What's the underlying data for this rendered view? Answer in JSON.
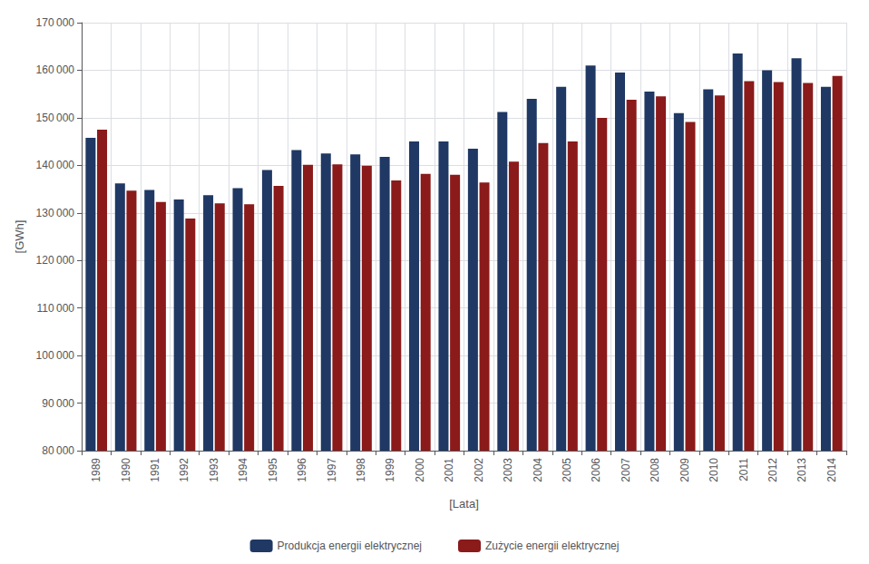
{
  "chart_data": {
    "type": "bar",
    "xlabel": "[Lata]",
    "ylabel": "[GWh]",
    "categories": [
      "1989",
      "1990",
      "1991",
      "1992",
      "1993",
      "1994",
      "1995",
      "1996",
      "1997",
      "1998",
      "1999",
      "2000",
      "2001",
      "2002",
      "2003",
      "2004",
      "2005",
      "2006",
      "2007",
      "2008",
      "2009",
      "2010",
      "2011",
      "2012",
      "2013",
      "2014"
    ],
    "series": [
      {
        "name": "Produkcja energii elektrycznej",
        "color": "#1F3864",
        "values": [
          145800,
          136200,
          134800,
          132800,
          133700,
          135200,
          139000,
          143200,
          142500,
          142300,
          141800,
          145000,
          145000,
          143500,
          151200,
          154000,
          156500,
          161000,
          159500,
          155500,
          151000,
          156000,
          163500,
          160000,
          162500,
          156500
        ]
      },
      {
        "name": "Zużycie energii elektrycznej",
        "color": "#8B1A1A",
        "values": [
          147500,
          134700,
          132300,
          128800,
          132000,
          131800,
          135700,
          140100,
          140200,
          139900,
          136800,
          138200,
          138000,
          136400,
          140800,
          144700,
          145000,
          150000,
          153800,
          154500,
          149100,
          154700,
          157700,
          157500,
          157300,
          158800
        ]
      }
    ],
    "ylim": [
      80000,
      170000
    ],
    "yticks": [
      {
        "value": 80000,
        "label": "80 000"
      },
      {
        "value": 90000,
        "label": "90 000"
      },
      {
        "value": 100000,
        "label": "100 000"
      },
      {
        "value": 110000,
        "label": "110 000"
      },
      {
        "value": 120000,
        "label": "120 000"
      },
      {
        "value": 130000,
        "label": "130 000"
      },
      {
        "value": 140000,
        "label": "140 000"
      },
      {
        "value": 150000,
        "label": "150 000"
      },
      {
        "value": 160000,
        "label": "160 000"
      },
      {
        "value": 170000,
        "label": "170 000"
      }
    ],
    "grid": true,
    "legend": "bottom"
  }
}
